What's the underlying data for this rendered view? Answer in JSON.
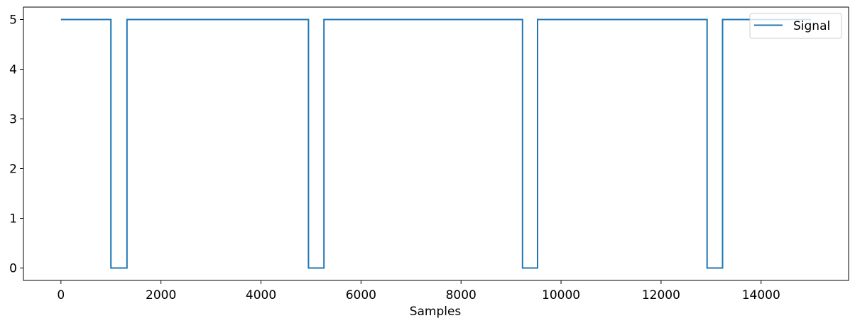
{
  "chart_data": {
    "type": "line",
    "title": "",
    "xlabel": "Samples",
    "ylabel": "",
    "xlim": [
      -750,
      15750
    ],
    "ylim": [
      -0.25,
      5.25
    ],
    "xticks": [
      0,
      2000,
      4000,
      6000,
      8000,
      10000,
      12000,
      14000
    ],
    "yticks": [
      0,
      1,
      2,
      3,
      4,
      5
    ],
    "grid": false,
    "legend_position": "top-right",
    "series": [
      {
        "name": "Signal",
        "color": "#1f77b4",
        "step": true,
        "points": [
          [
            0,
            5
          ],
          [
            1000,
            5
          ],
          [
            1000,
            0
          ],
          [
            1320,
            0
          ],
          [
            1320,
            5
          ],
          [
            4950,
            5
          ],
          [
            4950,
            0
          ],
          [
            5260,
            0
          ],
          [
            5260,
            5
          ],
          [
            9230,
            5
          ],
          [
            9230,
            0
          ],
          [
            9530,
            0
          ],
          [
            9530,
            5
          ],
          [
            12920,
            5
          ],
          [
            12920,
            0
          ],
          [
            13230,
            0
          ],
          [
            13230,
            5
          ],
          [
            15000,
            5
          ]
        ]
      }
    ]
  }
}
